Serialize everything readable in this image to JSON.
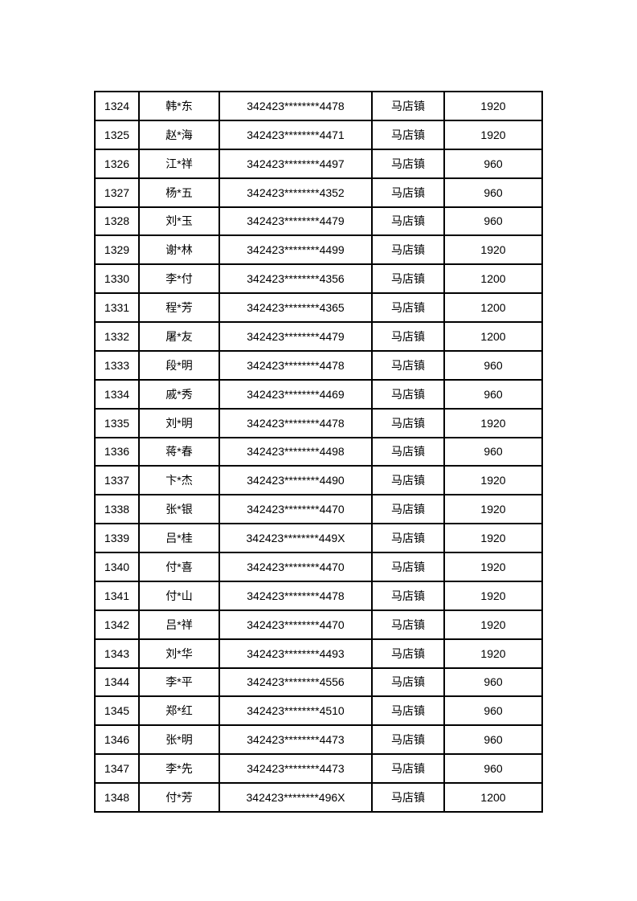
{
  "document": {
    "background_color": "#ffffff",
    "table": {
      "border_color": "#000000",
      "text_color": "#000000",
      "rows": [
        [
          "1324",
          "韩*东",
          "342423********4478",
          "马店镇",
          "1920"
        ],
        [
          "1325",
          "赵*海",
          "342423********4471",
          "马店镇",
          "1920"
        ],
        [
          "1326",
          "江*祥",
          "342423********4497",
          "马店镇",
          "960"
        ],
        [
          "1327",
          "杨*五",
          "342423********4352",
          "马店镇",
          "960"
        ],
        [
          "1328",
          "刘*玉",
          "342423********4479",
          "马店镇",
          "960"
        ],
        [
          "1329",
          "谢*林",
          "342423********4499",
          "马店镇",
          "1920"
        ],
        [
          "1330",
          "李*付",
          "342423********4356",
          "马店镇",
          "1200"
        ],
        [
          "1331",
          "程*芳",
          "342423********4365",
          "马店镇",
          "1200"
        ],
        [
          "1332",
          "屠*友",
          "342423********4479",
          "马店镇",
          "1200"
        ],
        [
          "1333",
          "段*明",
          "342423********4478",
          "马店镇",
          "960"
        ],
        [
          "1334",
          "戚*秀",
          "342423********4469",
          "马店镇",
          "960"
        ],
        [
          "1335",
          "刘*明",
          "342423********4478",
          "马店镇",
          "1920"
        ],
        [
          "1336",
          "蒋*春",
          "342423********4498",
          "马店镇",
          "960"
        ],
        [
          "1337",
          "卞*杰",
          "342423********4490",
          "马店镇",
          "1920"
        ],
        [
          "1338",
          "张*银",
          "342423********4470",
          "马店镇",
          "1920"
        ],
        [
          "1339",
          "吕*桂",
          "342423********449X",
          "马店镇",
          "1920"
        ],
        [
          "1340",
          "付*喜",
          "342423********4470",
          "马店镇",
          "1920"
        ],
        [
          "1341",
          "付*山",
          "342423********4478",
          "马店镇",
          "1920"
        ],
        [
          "1342",
          "吕*祥",
          "342423********4470",
          "马店镇",
          "1920"
        ],
        [
          "1343",
          "刘*华",
          "342423********4493",
          "马店镇",
          "1920"
        ],
        [
          "1344",
          "李*平",
          "342423********4556",
          "马店镇",
          "960"
        ],
        [
          "1345",
          "郑*红",
          "342423********4510",
          "马店镇",
          "960"
        ],
        [
          "1346",
          "张*明",
          "342423********4473",
          "马店镇",
          "960"
        ],
        [
          "1347",
          "李*先",
          "342423********4473",
          "马店镇",
          "960"
        ],
        [
          "1348",
          "付*芳",
          "342423********496X",
          "马店镇",
          "1200"
        ]
      ]
    }
  }
}
